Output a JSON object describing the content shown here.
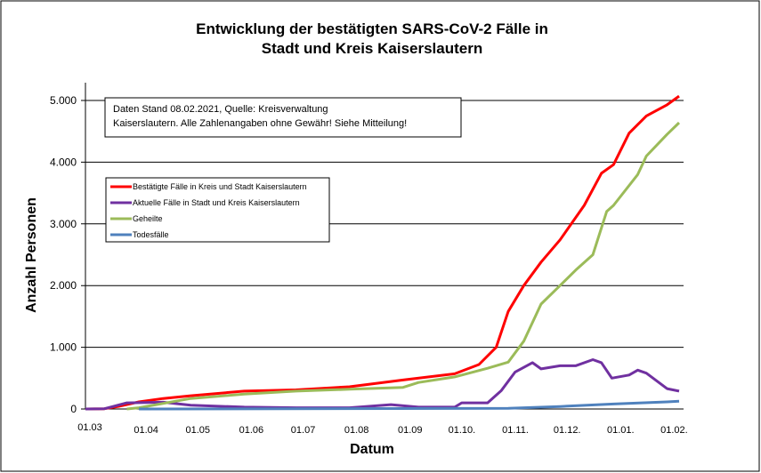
{
  "chart_data": {
    "type": "line",
    "title": "Entwicklung der bestätigten SARS-CoV-2 Fälle in Stadt und Kreis Kaiserslautern",
    "title_lines": [
      "Entwicklung der bestätigten SARS-CoV-2 Fälle in",
      "Stadt und Kreis Kaiserslautern"
    ],
    "xlabel": "Datum",
    "ylabel": "Anzahl Personen",
    "ylim": [
      0,
      5000
    ],
    "xlim": [
      "2020-03-01",
      "2021-02-08"
    ],
    "grid": true,
    "yticks": [
      0,
      1000,
      2000,
      3000,
      4000,
      5000
    ],
    "ytick_labels": [
      "0",
      "1.000",
      "2.000",
      "3.000",
      "4.000",
      "5.000"
    ],
    "xticks": [
      {
        "date": "2020-03-01",
        "label": "01.03"
      },
      {
        "date": "2020-04-01",
        "label": "01.04"
      },
      {
        "date": "2020-05-01",
        "label": "01.05"
      },
      {
        "date": "2020-06-01",
        "label": "01.06"
      },
      {
        "date": "2020-07-01",
        "label": "01.07"
      },
      {
        "date": "2020-08-01",
        "label": "01.08"
      },
      {
        "date": "2020-09-01",
        "label": "01.09"
      },
      {
        "date": "2020-10-01",
        "label": "01.10."
      },
      {
        "date": "2020-11-01",
        "label": "01.11."
      },
      {
        "date": "2020-12-01",
        "label": "01.12."
      },
      {
        "date": "2021-01-01",
        "label": "01.01."
      },
      {
        "date": "2021-02-01",
        "label": "01.02."
      }
    ],
    "annotation": [
      "Daten Stand 08.02.2021, Quelle: Kreisverwaltung",
      "Kaiserslautern. Alle Zahlenangaben ohne Gewähr! Siehe Mitteilung!"
    ],
    "legend_position": "left",
    "series": [
      {
        "name": "Bestätigte Fälle in Kreis und Stadt Kaiserslautern",
        "color": "#ff0000",
        "points": [
          [
            "2020-03-01",
            0
          ],
          [
            "2020-03-12",
            5
          ],
          [
            "2020-03-20",
            40
          ],
          [
            "2020-04-01",
            115
          ],
          [
            "2020-04-15",
            170
          ],
          [
            "2020-05-01",
            215
          ],
          [
            "2020-06-01",
            290
          ],
          [
            "2020-07-01",
            310
          ],
          [
            "2020-08-01",
            360
          ],
          [
            "2020-09-01",
            470
          ],
          [
            "2020-10-01",
            570
          ],
          [
            "2020-10-15",
            720
          ],
          [
            "2020-10-25",
            1000
          ],
          [
            "2020-11-01",
            1580
          ],
          [
            "2020-11-10",
            2000
          ],
          [
            "2020-11-20",
            2380
          ],
          [
            "2020-12-01",
            2740
          ],
          [
            "2020-12-15",
            3300
          ],
          [
            "2020-12-25",
            3820
          ],
          [
            "2021-01-01",
            3960
          ],
          [
            "2021-01-10",
            4470
          ],
          [
            "2021-01-20",
            4750
          ],
          [
            "2021-02-01",
            4930
          ],
          [
            "2021-02-08",
            5070
          ]
        ]
      },
      {
        "name": "Aktuelle Fälle in Stadt und Kreis Kaiserslautern",
        "color": "#7030a0",
        "points": [
          [
            "2020-03-01",
            0
          ],
          [
            "2020-03-12",
            5
          ],
          [
            "2020-03-25",
            100
          ],
          [
            "2020-04-15",
            110
          ],
          [
            "2020-05-01",
            60
          ],
          [
            "2020-06-01",
            30
          ],
          [
            "2020-07-01",
            20
          ],
          [
            "2020-08-01",
            20
          ],
          [
            "2020-08-25",
            70
          ],
          [
            "2020-09-10",
            30
          ],
          [
            "2020-10-01",
            30
          ],
          [
            "2020-10-05",
            100
          ],
          [
            "2020-10-20",
            100
          ],
          [
            "2020-10-28",
            300
          ],
          [
            "2020-11-05",
            600
          ],
          [
            "2020-11-15",
            750
          ],
          [
            "2020-11-20",
            650
          ],
          [
            "2020-12-01",
            700
          ],
          [
            "2020-12-10",
            700
          ],
          [
            "2020-12-20",
            800
          ],
          [
            "2020-12-25",
            750
          ],
          [
            "2020-12-31",
            500
          ],
          [
            "2021-01-10",
            550
          ],
          [
            "2021-01-15",
            630
          ],
          [
            "2021-01-20",
            580
          ],
          [
            "2021-02-01",
            330
          ],
          [
            "2021-02-08",
            290
          ]
        ]
      },
      {
        "name": "Geheilte",
        "color": "#9bbb59",
        "points": [
          [
            "2020-03-25",
            0
          ],
          [
            "2020-04-01",
            20
          ],
          [
            "2020-05-01",
            170
          ],
          [
            "2020-06-01",
            240
          ],
          [
            "2020-07-01",
            290
          ],
          [
            "2020-08-01",
            320
          ],
          [
            "2020-09-01",
            350
          ],
          [
            "2020-09-10",
            430
          ],
          [
            "2020-10-01",
            520
          ],
          [
            "2020-10-20",
            660
          ],
          [
            "2020-11-01",
            760
          ],
          [
            "2020-11-10",
            1100
          ],
          [
            "2020-11-20",
            1700
          ],
          [
            "2020-12-01",
            2000
          ],
          [
            "2020-12-10",
            2250
          ],
          [
            "2020-12-20",
            2500
          ],
          [
            "2020-12-28",
            3200
          ],
          [
            "2021-01-01",
            3300
          ],
          [
            "2021-01-15",
            3800
          ],
          [
            "2021-01-20",
            4100
          ],
          [
            "2021-02-01",
            4450
          ],
          [
            "2021-02-08",
            4640
          ]
        ]
      },
      {
        "name": "Todesfälle",
        "color": "#4f81bd",
        "points": [
          [
            "2020-04-01",
            0
          ],
          [
            "2020-11-01",
            10
          ],
          [
            "2020-12-01",
            40
          ],
          [
            "2021-01-01",
            80
          ],
          [
            "2021-02-01",
            115
          ],
          [
            "2021-02-08",
            125
          ]
        ]
      }
    ]
  }
}
